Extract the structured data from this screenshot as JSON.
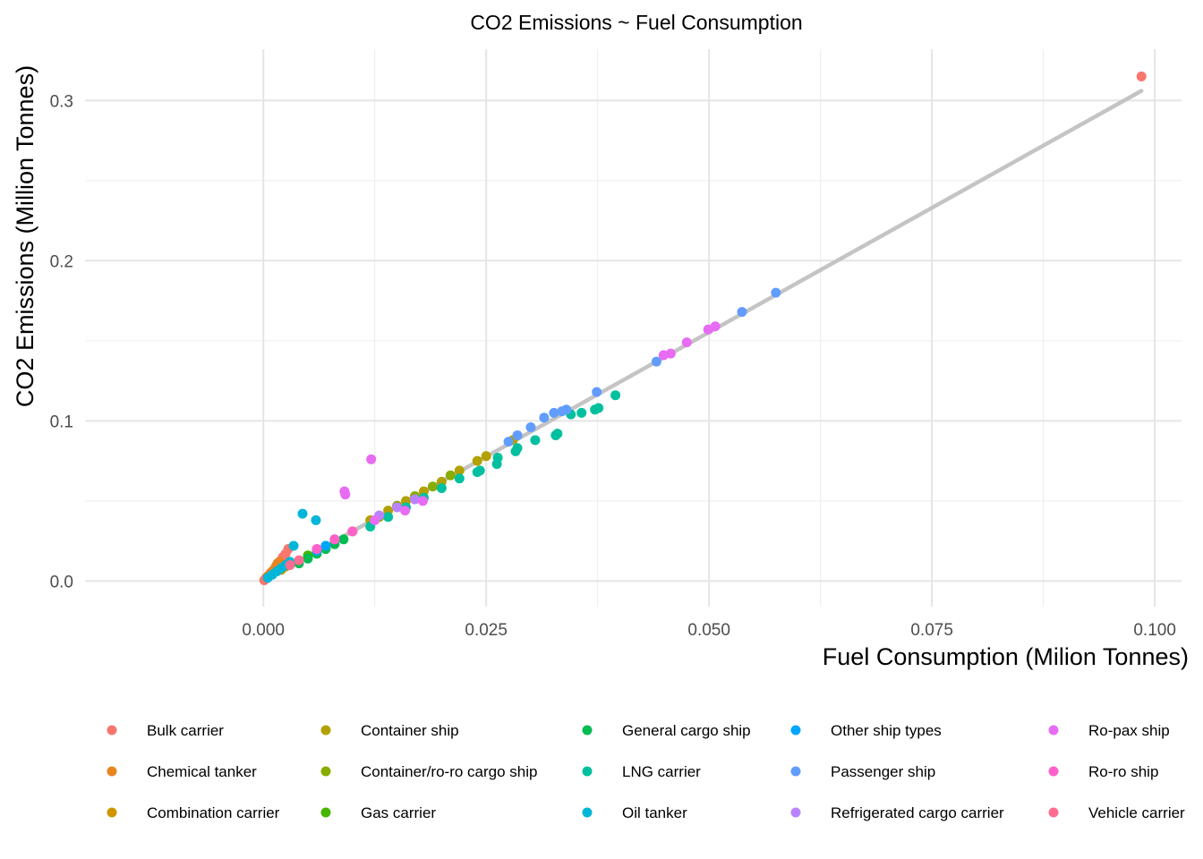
{
  "chart_data": {
    "type": "scatter",
    "title": "CO2 Emissions ~ Fuel Consumption",
    "xlabel": "Fuel Consumption (Milion Tonnes)",
    "ylabel": "CO2 Emissions (Million Tonnes)",
    "xlim": [
      -0.02,
      0.103
    ],
    "ylim": [
      -0.016,
      0.332
    ],
    "x_ticks": [
      0.0,
      0.025,
      0.05,
      0.075,
      0.1
    ],
    "x_tick_labels": [
      "0.000",
      "0.025",
      "0.050",
      "0.075",
      "0.100"
    ],
    "y_ticks": [
      0.0,
      0.1,
      0.2,
      0.3
    ],
    "y_tick_labels": [
      "0.0",
      "0.1",
      "0.2",
      "0.3"
    ],
    "grid": true,
    "legend_position": "bottom",
    "trend_line": {
      "color": "#c4c4c4",
      "x": [
        0.0,
        0.0985
      ],
      "y": [
        0.0,
        0.306
      ]
    },
    "series": [
      {
        "name": "Bulk carrier",
        "color": "#F8766D",
        "x": [
          0.0985,
          0.0028,
          0.0025,
          0.0022,
          0.002,
          0.0018,
          0.0015,
          0.001,
          0.0008,
          0.0005,
          0.0003,
          0.0001
        ],
        "y": [
          0.315,
          0.02,
          0.017,
          0.015,
          0.013,
          0.012,
          0.01,
          0.006,
          0.005,
          0.003,
          0.002,
          0.0005
        ]
      },
      {
        "name": "Chemical tanker",
        "color": "#E7851E",
        "x": [
          0.0018,
          0.0016,
          0.0014,
          0.0012,
          0.001,
          0.0008,
          0.0005
        ],
        "y": [
          0.012,
          0.011,
          0.009,
          0.007,
          0.006,
          0.004,
          0.003
        ]
      },
      {
        "name": "Combination carrier",
        "color": "#D09400",
        "x": [
          0.0025,
          0.002
        ],
        "y": [
          0.009,
          0.007
        ]
      },
      {
        "name": "Container ship",
        "color": "#B2A100",
        "x": [
          0.025,
          0.024,
          0.022,
          0.02,
          0.018,
          0.016,
          0.014,
          0.012,
          0.01,
          0.028
        ],
        "y": [
          0.078,
          0.075,
          0.069,
          0.062,
          0.056,
          0.05,
          0.044,
          0.038,
          0.031,
          0.088
        ]
      },
      {
        "name": "Container/ro-ro cargo ship",
        "color": "#89AC00",
        "x": [
          0.021,
          0.019,
          0.017,
          0.015,
          0.013
        ],
        "y": [
          0.066,
          0.059,
          0.053,
          0.047,
          0.04
        ]
      },
      {
        "name": "Gas carrier",
        "color": "#45B500",
        "x": [
          0.007,
          0.006,
          0.005
        ],
        "y": [
          0.022,
          0.019,
          0.016
        ]
      },
      {
        "name": "General cargo ship",
        "color": "#00BC51",
        "x": [
          0.009,
          0.008,
          0.007,
          0.006,
          0.005,
          0.004
        ],
        "y": [
          0.026,
          0.023,
          0.02,
          0.017,
          0.014,
          0.011
        ]
      },
      {
        "name": "LNG carrier",
        "color": "#00C0A0",
        "x": [
          0.0395,
          0.0376,
          0.0372,
          0.0357,
          0.0345,
          0.033,
          0.0328,
          0.0305,
          0.0285,
          0.0283,
          0.0263,
          0.0262,
          0.0243,
          0.024,
          0.022,
          0.02,
          0.018,
          0.016,
          0.014,
          0.012
        ],
        "y": [
          0.116,
          0.108,
          0.107,
          0.105,
          0.104,
          0.092,
          0.091,
          0.088,
          0.083,
          0.081,
          0.077,
          0.073,
          0.069,
          0.068,
          0.064,
          0.058,
          0.052,
          0.046,
          0.04,
          0.034
        ]
      },
      {
        "name": "Oil tanker",
        "color": "#00B6D8",
        "x": [
          0.0044,
          0.0059,
          0.0034,
          0.003,
          0.0025,
          0.002,
          0.0015,
          0.001,
          0.0005
        ],
        "y": [
          0.042,
          0.038,
          0.022,
          0.012,
          0.01,
          0.008,
          0.006,
          0.004,
          0.002
        ]
      },
      {
        "name": "Other ship types",
        "color": "#00A5FF",
        "x": [
          0.008,
          0.007,
          0.006
        ],
        "y": [
          0.026,
          0.022,
          0.019
        ]
      },
      {
        "name": "Passenger ship",
        "color": "#619CFF",
        "x": [
          0.0575,
          0.0537,
          0.0441,
          0.0374,
          0.034,
          0.0335,
          0.0326,
          0.0315,
          0.03,
          0.0285,
          0.0275
        ],
        "y": [
          0.18,
          0.168,
          0.137,
          0.118,
          0.107,
          0.106,
          0.105,
          0.102,
          0.096,
          0.091,
          0.087
        ]
      },
      {
        "name": "Refrigerated cargo carrier",
        "color": "#B983FF",
        "x": [
          0.017,
          0.015,
          0.013
        ],
        "y": [
          0.051,
          0.046,
          0.041
        ]
      },
      {
        "name": "Ro-pax ship",
        "color": "#E76BF3",
        "x": [
          0.0507,
          0.0499,
          0.0475,
          0.0457,
          0.0449,
          0.0121,
          0.0091,
          0.0092,
          0.0179,
          0.0159,
          0.0125
        ],
        "y": [
          0.159,
          0.157,
          0.149,
          0.142,
          0.141,
          0.076,
          0.056,
          0.054,
          0.05,
          0.044,
          0.038
        ]
      },
      {
        "name": "Ro-ro ship",
        "color": "#FF61C9",
        "x": [
          0.01,
          0.008,
          0.006
        ],
        "y": [
          0.031,
          0.026,
          0.02
        ]
      },
      {
        "name": "Vehicle carrier",
        "color": "#FF6C91",
        "x": [
          0.004,
          0.003
        ],
        "y": [
          0.013,
          0.01
        ]
      }
    ]
  }
}
